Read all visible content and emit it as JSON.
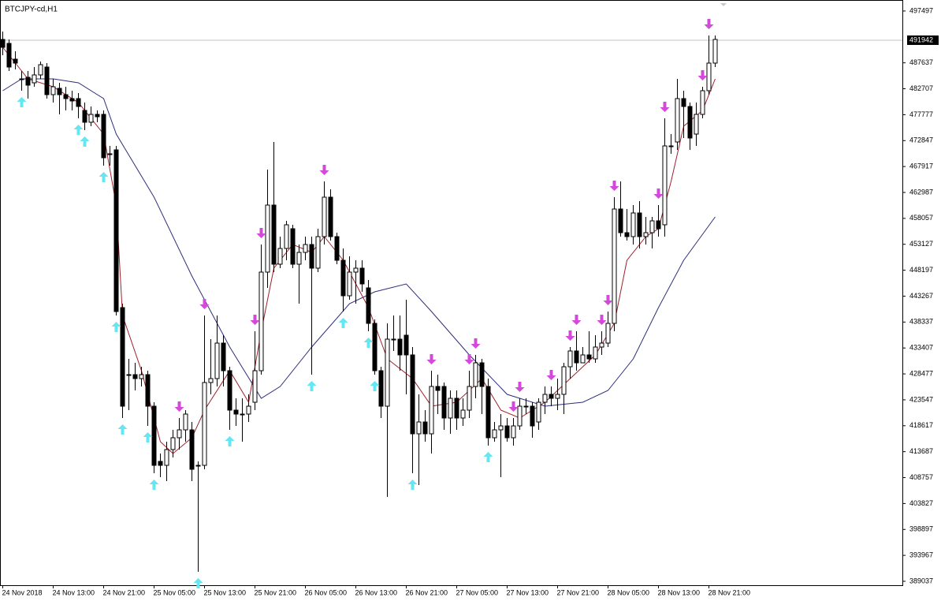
{
  "chart_data": {
    "type": "candlestick",
    "title": "BTCJPY-cd,H1",
    "categories": [
      "24 Nov 2018",
      null,
      null,
      null,
      null,
      null,
      null,
      null,
      "24 Nov 13:00",
      null,
      null,
      null,
      null,
      null,
      null,
      null,
      "24 Nov 21:00",
      null,
      null,
      null,
      null,
      null,
      null,
      null,
      "25 Nov 05:00",
      null,
      null,
      null,
      null,
      null,
      null,
      null,
      "25 Nov 13:00",
      null,
      null,
      null,
      null,
      null,
      null,
      null,
      "25 Nov 21:00",
      null,
      null,
      null,
      null,
      null,
      null,
      null,
      "26 Nov 05:00",
      null,
      null,
      null,
      null,
      null,
      null,
      null,
      "26 Nov 13:00",
      null,
      null,
      null,
      null,
      null,
      null,
      null,
      "26 Nov 21:00",
      null,
      null,
      null,
      null,
      null,
      null,
      null,
      "27 Nov 05:00",
      null,
      null,
      null,
      null,
      null,
      null,
      null,
      "27 Nov 13:00",
      null,
      null,
      null,
      null,
      null,
      null,
      null,
      "27 Nov 21:00",
      null,
      null,
      null,
      null,
      null,
      null,
      null,
      "28 Nov 05:00",
      null,
      null,
      null,
      null,
      null,
      null,
      null,
      "28 Nov 13:00",
      null,
      null,
      null,
      null,
      null,
      null,
      null,
      "28 Nov 21:00",
      null
    ],
    "open": [
      492087,
      491337,
      488337,
      484587,
      484887,
      483837,
      485337,
      486837,
      481587,
      482787,
      481587,
      480837,
      480837,
      478587,
      476337,
      477837,
      477837,
      470337,
      471087,
      441087,
      428337,
      428337,
      427587,
      428337,
      422337,
      411837,
      411087,
      414087,
      416337,
      417837,
      417837,
      411087,
      411087,
      426837,
      427587,
      434337,
      429087,
      421587,
      420837,
      420837,
      423087,
      429087,
      447837,
      460587,
      449337,
      452337,
      456087,
      449337,
      451587,
      453087,
      448587,
      454587,
      462087,
      454587,
      450087,
      443337,
      447837,
      448587,
      444837,
      438087,
      429087,
      422337,
      435087,
      435087,
      435837,
      432087,
      417087,
      419337,
      417087,
      426087,
      426087,
      420087,
      423837,
      420087,
      421587,
      426087,
      430587,
      426087,
      416337,
      417837,
      418587,
      416337,
      418587,
      422337,
      422337,
      419337,
      423087,
      424587,
      423837,
      424587,
      429837,
      432837,
      430587,
      432087,
      431337,
      433587,
      434337,
      438087,
      459837,
      455337,
      454587,
      459087,
      454587,
      455337,
      457587,
      456837,
      471837,
      472587,
      480837,
      479337,
      474087,
      477837,
      482337,
      487587
    ],
    "high": [
      493587,
      492087,
      489837,
      486087,
      486087,
      486837,
      487887,
      487587,
      484587,
      483837,
      483087,
      482337,
      481887,
      480087,
      479337,
      478587,
      478587,
      471837,
      471837,
      441837,
      431337,
      430587,
      429837,
      429087,
      423087,
      413337,
      415587,
      417837,
      420087,
      421587,
      419337,
      411837,
      439587,
      435087,
      439587,
      435837,
      429837,
      423837,
      423837,
      424587,
      436587,
      453087,
      467337,
      472587,
      454587,
      457587,
      456837,
      453087,
      454587,
      454587,
      456087,
      465087,
      463587,
      455337,
      452337,
      450837,
      450087,
      450087,
      446337,
      438837,
      429837,
      438087,
      439587,
      439587,
      442587,
      433587,
      424587,
      421587,
      429087,
      428337,
      426837,
      425337,
      425337,
      423837,
      429087,
      432087,
      431337,
      427587,
      419337,
      420837,
      420087,
      420087,
      423837,
      423837,
      423087,
      423837,
      426087,
      426087,
      427587,
      430587,
      433587,
      436587,
      433587,
      436587,
      435837,
      436587,
      440337,
      462087,
      465087,
      459837,
      460587,
      461337,
      458337,
      458337,
      460587,
      477087,
      474087,
      484587,
      482337,
      480087,
      480087,
      483087,
      492837,
      492837
    ],
    "low": [
      489087,
      486087,
      486387,
      482337,
      480837,
      483087,
      484587,
      480837,
      480087,
      477837,
      478587,
      478587,
      477087,
      474837,
      475587,
      476337,
      468087,
      468087,
      439587,
      420087,
      421587,
      425337,
      426087,
      418587,
      409587,
      408837,
      408087,
      412587,
      414087,
      415587,
      408087,
      390837,
      410337,
      424587,
      426087,
      426087,
      417837,
      418587,
      415587,
      419337,
      421587,
      428337,
      444837,
      447837,
      448587,
      450087,
      448587,
      441837,
      450087,
      428337,
      447837,
      453087,
      453837,
      449337,
      440337,
      442587,
      441837,
      444087,
      436587,
      428337,
      420087,
      405087,
      432837,
      429087,
      424587,
      409587,
      407337,
      415587,
      413337,
      420837,
      417837,
      417087,
      417837,
      418587,
      420087,
      423837,
      420837,
      414837,
      415587,
      408837,
      415587,
      414837,
      417837,
      420837,
      416337,
      417837,
      420837,
      422337,
      421587,
      420837,
      427587,
      429087,
      430587,
      430587,
      430587,
      432087,
      433587,
      436587,
      454587,
      453837,
      453087,
      452337,
      453087,
      452337,
      454587,
      454587,
      470337,
      471087,
      473337,
      471087,
      471837,
      477087,
      481587,
      486837
    ],
    "close": [
      490587,
      486837,
      487587,
      484587,
      483387,
      485337,
      487287,
      481587,
      483087,
      481587,
      480837,
      480387,
      479337,
      476337,
      477837,
      477387,
      469587,
      470337,
      440337,
      422337,
      428337,
      427587,
      428337,
      422337,
      411087,
      411087,
      414087,
      416337,
      417837,
      420837,
      410337,
      411087,
      426837,
      427587,
      434337,
      429087,
      421587,
      420837,
      420837,
      422337,
      429087,
      447837,
      460587,
      449337,
      452337,
      456837,
      449337,
      451587,
      453087,
      448587,
      454587,
      462087,
      454587,
      450087,
      443337,
      447837,
      448587,
      445587,
      438087,
      429087,
      422337,
      435087,
      435087,
      432087,
      432087,
      417087,
      419337,
      417087,
      426087,
      425337,
      420087,
      423837,
      420087,
      421587,
      426087,
      430587,
      426087,
      416337,
      417837,
      418587,
      416337,
      418587,
      422337,
      422337,
      418587,
      423087,
      424587,
      423837,
      424587,
      429837,
      432837,
      430587,
      432087,
      431337,
      433587,
      434337,
      438087,
      459837,
      455337,
      454587,
      459087,
      454587,
      455337,
      457587,
      456087,
      471837,
      471837,
      480837,
      479337,
      473337,
      477837,
      482337,
      487587,
      492087
    ],
    "up_color": "#ffffff",
    "down_color": "#000000",
    "candle_outline": "#000000",
    "lines": [
      {
        "color": "#2e2e7a",
        "x": [
          0,
          3,
          8,
          12,
          16,
          18,
          24,
          30,
          36,
          41,
          44,
          49,
          55,
          59,
          64,
          68,
          74,
          80,
          86,
          92,
          96,
          100,
          104,
          108,
          113
        ],
        "values": [
          482337,
          484587,
          484587,
          483837,
          480837,
          474087,
          462087,
          447087,
          433587,
          423837,
          426087,
          433587,
          441837,
          444087,
          445587,
          440337,
          432087,
          424587,
          422337,
          423087,
          425337,
          431337,
          441087,
          450087,
          458337
        ]
      },
      {
        "color": "#a0202a",
        "x": [
          0,
          4,
          8,
          12,
          16,
          18,
          19,
          22,
          25,
          27,
          30,
          32,
          36,
          39,
          41,
          43,
          46,
          49,
          51,
          54,
          58,
          61,
          65,
          68,
          72,
          76,
          79,
          82,
          86,
          90,
          94,
          97,
          99,
          102,
          104,
          106,
          108,
          111,
          113
        ],
        "values": [
          490587,
          484587,
          483087,
          480087,
          474087,
          460587,
          439587,
          429087,
          415587,
          413337,
          416337,
          421587,
          429087,
          423087,
          436587,
          448587,
          453087,
          451587,
          454587,
          450087,
          441087,
          431337,
          427587,
          422337,
          423087,
          427587,
          421587,
          420087,
          423087,
          427587,
          432087,
          438087,
          450087,
          454587,
          456087,
          465087,
          475587,
          478587,
          484587
        ]
      }
    ],
    "buy_signals": [
      3,
      12,
      13,
      16,
      18,
      19,
      23,
      24,
      31,
      36,
      49,
      54,
      58,
      59,
      65,
      77
    ],
    "sell_signals": [
      28,
      32,
      40,
      41,
      51,
      68,
      74,
      75,
      81,
      82,
      87,
      90,
      91,
      95,
      96,
      97,
      104,
      105,
      111,
      112
    ],
    "buy_color": "#66e6f0",
    "sell_color": "#d24ad8",
    "last_price": 491942,
    "ylim": [
      388287,
      498837
    ],
    "yticks": [
      497497,
      487637,
      482707,
      477777,
      472847,
      467917,
      462987,
      458057,
      453127,
      448197,
      443267,
      438337,
      433407,
      428477,
      423547,
      418617,
      413687,
      408757,
      403827,
      398897,
      393967,
      389037
    ]
  }
}
